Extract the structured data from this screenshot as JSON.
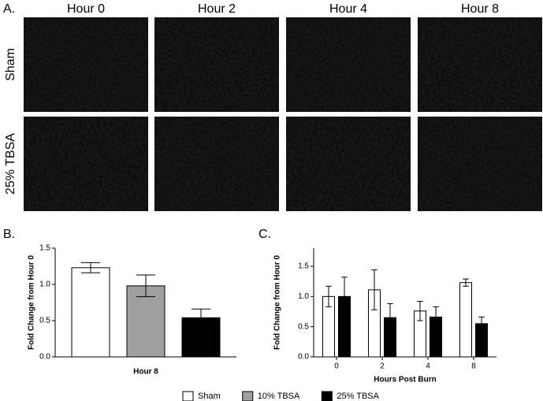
{
  "panel_a": {
    "label": "A.",
    "columns": [
      "Hour 0",
      "Hour 2",
      "Hour 4",
      "Hour 8"
    ],
    "rows": [
      "Sham",
      "25% TBSA"
    ]
  },
  "chart_data": [
    {
      "type": "bar",
      "panel_label": "B.",
      "x_label": "Hour 8",
      "y_label": "Fold Change from Hour 0",
      "categories": [
        null
      ],
      "series": [
        {
          "name": "Sham",
          "color": "#ffffff",
          "values": [
            1.23
          ],
          "errors": [
            0.07
          ]
        },
        {
          "name": "10% TBSA",
          "color": "#a0a0a0",
          "values": [
            0.98
          ],
          "errors": [
            0.15
          ]
        },
        {
          "name": "25% TBSA",
          "color": "#000000",
          "values": [
            0.54
          ],
          "errors": [
            0.12
          ]
        }
      ],
      "ylim": [
        0,
        1.5
      ],
      "yticks": [
        {
          "value": 0,
          "label": "0.0"
        },
        0.5,
        {
          "value": 1,
          "label": "1.0"
        },
        1.5
      ]
    },
    {
      "type": "bar",
      "panel_label": "C.",
      "x_label": "Hours Post Burn",
      "y_label": "Fold Change from Hour 0",
      "categories": [
        "0",
        "2",
        "4",
        "8"
      ],
      "series": [
        {
          "color": "#ffffff",
          "values": [
            1.0,
            1.11,
            0.76,
            1.23
          ],
          "errors": [
            0.17,
            0.33,
            0.16,
            0.06
          ]
        },
        {
          "color": "#000000",
          "values": [
            1.0,
            0.65,
            0.66,
            0.55
          ],
          "errors": [
            0.32,
            0.23,
            0.17,
            0.11
          ]
        }
      ],
      "ylim": [
        0,
        1.8
      ],
      "yticks": [
        {
          "value": 0,
          "label": "0.0"
        },
        0.5,
        {
          "value": 1,
          "label": "1.0"
        },
        1.5
      ]
    }
  ]
}
